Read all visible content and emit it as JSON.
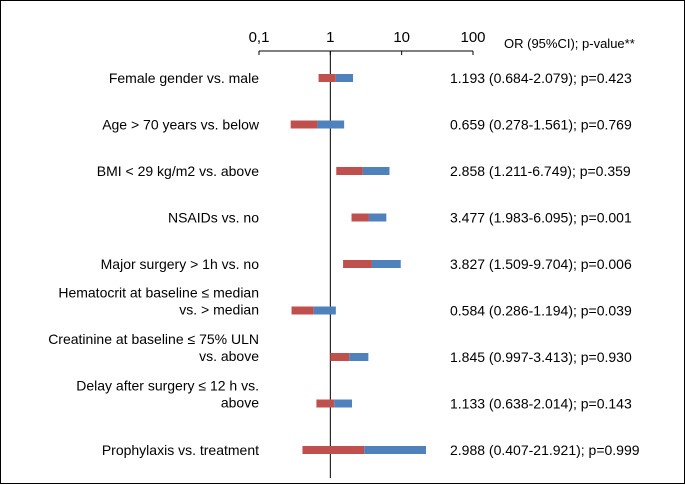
{
  "chart_data": {
    "type": "forest",
    "scale": "log",
    "xlim": [
      0.1,
      100
    ],
    "ticks": [
      {
        "value": 0.1,
        "label": "0,1"
      },
      {
        "value": 1,
        "label": "1"
      },
      {
        "value": 10,
        "label": "10"
      },
      {
        "value": 100,
        "label": "100"
      }
    ],
    "reference_line": 1,
    "column_header": "OR (95%CI); p-value**",
    "colors": {
      "lower_segment": "#c0504d",
      "upper_segment": "#4f81bd"
    },
    "rows": [
      {
        "label_lines": [
          "Female gender vs. male"
        ],
        "or": 1.193,
        "lower": 0.684,
        "upper": 2.079,
        "text": "1.193 (0.684-2.079); p=0.423"
      },
      {
        "label_lines": [
          "Age > 70 years vs. below"
        ],
        "or": 0.659,
        "lower": 0.278,
        "upper": 1.561,
        "text": "0.659 (0.278-1.561); p=0.769"
      },
      {
        "label_lines": [
          "BMI < 29 kg/m2 vs. above"
        ],
        "or": 2.858,
        "lower": 1.211,
        "upper": 6.749,
        "text": "2.858 (1.211-6.749); p=0.359"
      },
      {
        "label_lines": [
          "NSAIDs vs. no"
        ],
        "or": 3.477,
        "lower": 1.983,
        "upper": 6.095,
        "text": "3.477 (1.983-6.095); p=0.001"
      },
      {
        "label_lines": [
          "Major surgery > 1h vs. no"
        ],
        "or": 3.827,
        "lower": 1.509,
        "upper": 9.704,
        "text": "3.827 (1.509-9.704); p=0.006"
      },
      {
        "label_lines": [
          "Hematocrit at baseline ≤ median",
          "vs. > median"
        ],
        "or": 0.584,
        "lower": 0.286,
        "upper": 1.194,
        "text": "0.584 (0.286-1.194); p=0.039"
      },
      {
        "label_lines": [
          "Creatinine at baseline ≤ 75% ULN",
          "vs. above"
        ],
        "or": 1.845,
        "lower": 0.997,
        "upper": 3.413,
        "text": "1.845 (0.997-3.413); p=0.930"
      },
      {
        "label_lines": [
          "Delay after surgery ≤ 12 h vs.",
          "above"
        ],
        "or": 1.133,
        "lower": 0.638,
        "upper": 2.014,
        "text": "1.133 (0.638-2.014); p=0.143"
      },
      {
        "label_lines": [
          "Prophylaxis vs. treatment"
        ],
        "or": 2.988,
        "lower": 0.407,
        "upper": 21.921,
        "text": "2.988 (0.407-21.921); p=0.999"
      }
    ]
  }
}
